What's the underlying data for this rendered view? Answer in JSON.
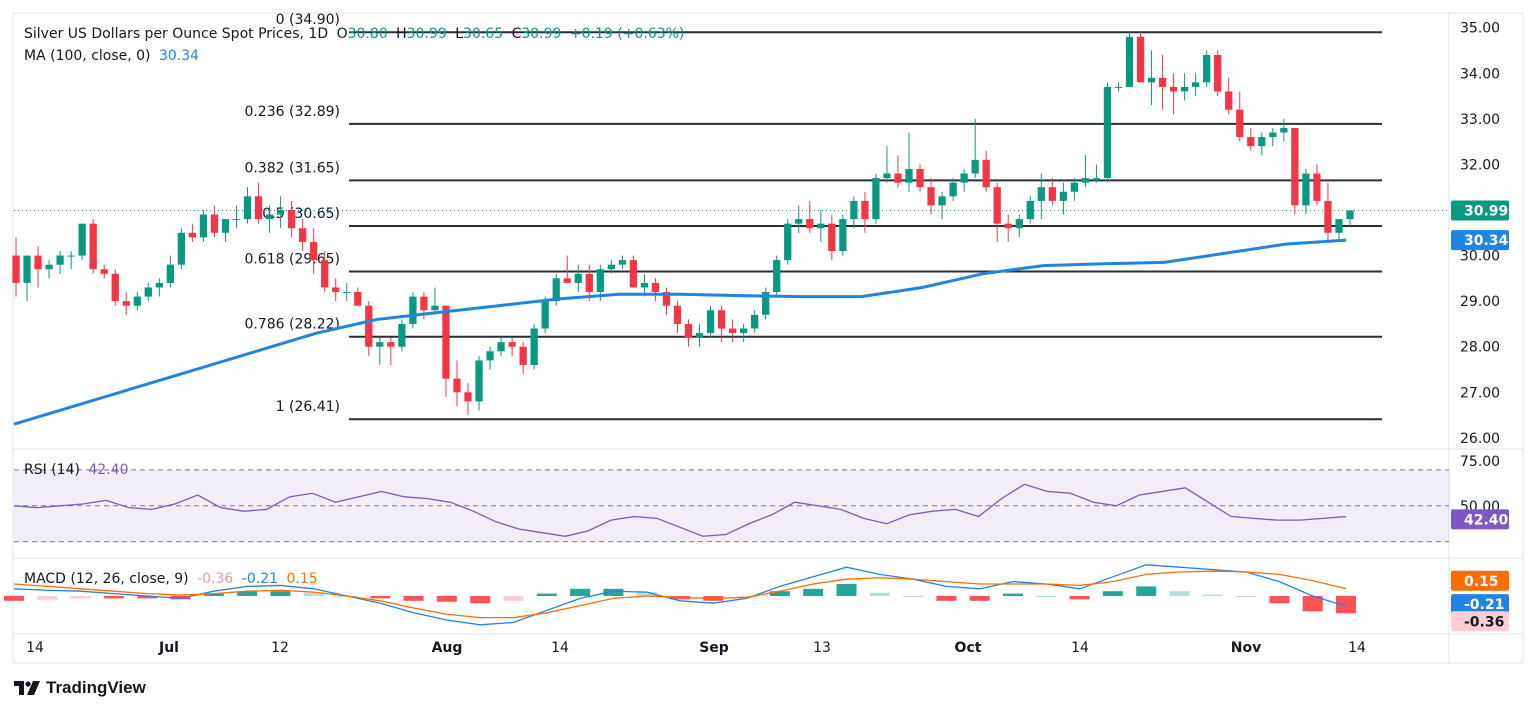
{
  "header": {
    "title": "Silver US Dollars per Ounce Spot Prices, 1D",
    "o_label": "O",
    "o": "30.80",
    "h_label": "H",
    "h": "30.99",
    "l_label": "L",
    "l": "30.65",
    "c_label": "C",
    "c": "30.99",
    "change": "+0.19 (+0.63%)",
    "ma_label": "MA (100, close, 0)",
    "ma_value": "30.34",
    "rsi_label": "RSI (14)",
    "rsi_value": "42.40",
    "macd_label": "MACD (12, 26, close, 9)",
    "macd_hist": "-0.36",
    "macd_line": "-0.21",
    "macd_signal": "0.15"
  },
  "brand": "TradingView",
  "colors": {
    "up": "#089981",
    "down": "#f23645",
    "ma": "#2962ff",
    "ma_line": "#2185e0",
    "rsi": "#7e57c2",
    "signal": "#ff6d00",
    "axis": "#131722"
  },
  "chart_data": [
    {
      "type": "candlestick",
      "title": "Silver US Dollars per Ounce Spot Prices, 1D",
      "ylim": [
        25.8,
        35.3
      ],
      "y_ticks": [
        "35.00",
        "34.00",
        "33.00",
        "32.00",
        "31.00",
        "30.00",
        "29.00",
        "28.00",
        "27.00",
        "26.00"
      ],
      "x_ticks": [
        "14",
        "Jul",
        "12",
        "Aug",
        "14",
        "Sep",
        "13",
        "Oct",
        "14",
        "Nov",
        "14"
      ],
      "last_price": "30.99",
      "ma_last": "30.34",
      "fibonacci": [
        {
          "label": "0 (34.90)",
          "value": 34.9
        },
        {
          "label": "0.236 (32.89)",
          "value": 32.89
        },
        {
          "label": "0.382 (31.65)",
          "value": 31.65
        },
        {
          "label": "0.5 (30.65)",
          "value": 30.65
        },
        {
          "label": "0.618 (29.65)",
          "value": 29.65
        },
        {
          "label": "0.786 (28.22)",
          "value": 28.22
        },
        {
          "label": "1 (26.41)",
          "value": 26.41
        }
      ],
      "candles": [
        [
          30.0,
          30.4,
          29.1,
          29.4
        ],
        [
          29.4,
          30.0,
          29.0,
          30.0
        ],
        [
          30.0,
          30.2,
          29.3,
          29.7
        ],
        [
          29.7,
          29.9,
          29.5,
          29.8
        ],
        [
          29.8,
          30.1,
          29.6,
          30.0
        ],
        [
          30.0,
          30.1,
          29.7,
          30.0
        ],
        [
          30.0,
          30.7,
          29.9,
          30.7
        ],
        [
          30.7,
          30.8,
          29.6,
          29.7
        ],
        [
          29.7,
          29.8,
          29.5,
          29.6
        ],
        [
          29.6,
          29.7,
          28.9,
          29.0
        ],
        [
          29.0,
          29.2,
          28.7,
          28.9
        ],
        [
          28.9,
          29.2,
          28.8,
          29.1
        ],
        [
          29.1,
          29.4,
          29.0,
          29.3
        ],
        [
          29.3,
          29.5,
          29.1,
          29.4
        ],
        [
          29.4,
          30.0,
          29.3,
          29.8
        ],
        [
          29.8,
          30.6,
          29.7,
          30.5
        ],
        [
          30.5,
          30.7,
          30.3,
          30.4
        ],
        [
          30.4,
          31.0,
          30.3,
          30.9
        ],
        [
          30.9,
          31.1,
          30.4,
          30.5
        ],
        [
          30.5,
          30.8,
          30.3,
          30.8
        ],
        [
          30.8,
          31.1,
          30.6,
          30.8
        ],
        [
          30.8,
          31.5,
          30.7,
          31.3
        ],
        [
          31.3,
          31.6,
          30.7,
          30.8
        ],
        [
          30.8,
          31.1,
          30.5,
          30.9
        ],
        [
          30.9,
          31.3,
          30.6,
          31.0
        ],
        [
          31.0,
          31.2,
          30.4,
          30.6
        ],
        [
          30.6,
          30.8,
          30.1,
          30.3
        ],
        [
          30.3,
          30.6,
          29.6,
          29.9
        ],
        [
          29.9,
          30.1,
          29.2,
          29.3
        ],
        [
          29.3,
          29.5,
          29.0,
          29.2
        ],
        [
          29.2,
          29.4,
          29.0,
          29.2
        ],
        [
          29.2,
          29.3,
          28.9,
          28.9
        ],
        [
          28.9,
          29.0,
          27.8,
          28.0
        ],
        [
          28.0,
          28.2,
          27.6,
          28.1
        ],
        [
          28.1,
          28.2,
          27.6,
          28.0
        ],
        [
          28.0,
          28.6,
          27.9,
          28.5
        ],
        [
          28.5,
          29.2,
          28.4,
          29.1
        ],
        [
          29.1,
          29.2,
          28.6,
          28.8
        ],
        [
          28.8,
          29.3,
          28.7,
          28.9
        ],
        [
          28.9,
          28.9,
          26.9,
          27.3
        ],
        [
          27.3,
          27.7,
          26.7,
          27.0
        ],
        [
          27.0,
          27.2,
          26.5,
          26.8
        ],
        [
          26.8,
          27.8,
          26.6,
          27.7
        ],
        [
          27.7,
          28.0,
          27.5,
          27.9
        ],
        [
          27.9,
          28.2,
          27.8,
          28.1
        ],
        [
          28.1,
          28.2,
          27.8,
          28.0
        ],
        [
          28.0,
          28.1,
          27.4,
          27.6
        ],
        [
          27.6,
          28.5,
          27.5,
          28.4
        ],
        [
          28.4,
          29.1,
          28.3,
          29.0
        ],
        [
          29.0,
          29.6,
          28.9,
          29.5
        ],
        [
          29.5,
          30.0,
          29.4,
          29.4
        ],
        [
          29.4,
          29.8,
          29.2,
          29.6
        ],
        [
          29.6,
          29.8,
          29.0,
          29.2
        ],
        [
          29.2,
          29.8,
          29.0,
          29.7
        ],
        [
          29.7,
          29.9,
          29.6,
          29.8
        ],
        [
          29.8,
          30.0,
          29.7,
          29.9
        ],
        [
          29.9,
          30.0,
          29.3,
          29.3
        ],
        [
          29.3,
          29.6,
          29.1,
          29.4
        ],
        [
          29.4,
          29.5,
          29.0,
          29.2
        ],
        [
          29.2,
          29.3,
          28.7,
          28.9
        ],
        [
          28.9,
          29.0,
          28.3,
          28.5
        ],
        [
          28.5,
          28.6,
          28.0,
          28.2
        ],
        [
          28.2,
          28.5,
          28.0,
          28.3
        ],
        [
          28.3,
          28.9,
          28.2,
          28.8
        ],
        [
          28.8,
          28.9,
          28.1,
          28.4
        ],
        [
          28.4,
          28.6,
          28.1,
          28.3
        ],
        [
          28.3,
          28.5,
          28.1,
          28.4
        ],
        [
          28.4,
          28.8,
          28.3,
          28.7
        ],
        [
          28.7,
          29.3,
          28.6,
          29.2
        ],
        [
          29.2,
          30.0,
          29.1,
          29.9
        ],
        [
          29.9,
          30.8,
          29.8,
          30.7
        ],
        [
          30.7,
          31.1,
          30.5,
          30.8
        ],
        [
          30.8,
          31.2,
          30.5,
          30.6
        ],
        [
          30.6,
          31.0,
          30.3,
          30.7
        ],
        [
          30.7,
          30.9,
          29.9,
          30.1
        ],
        [
          30.1,
          30.9,
          30.0,
          30.8
        ],
        [
          30.8,
          31.3,
          30.6,
          31.2
        ],
        [
          31.2,
          31.4,
          30.5,
          30.8
        ],
        [
          30.8,
          31.8,
          30.7,
          31.7
        ],
        [
          31.7,
          32.4,
          31.6,
          31.8
        ],
        [
          31.8,
          32.2,
          31.5,
          31.6
        ],
        [
          31.6,
          32.7,
          31.4,
          31.9
        ],
        [
          31.9,
          32.0,
          31.4,
          31.5
        ],
        [
          31.5,
          31.7,
          30.9,
          31.1
        ],
        [
          31.1,
          31.4,
          30.8,
          31.3
        ],
        [
          31.3,
          31.7,
          31.2,
          31.6
        ],
        [
          31.6,
          31.9,
          31.4,
          31.8
        ],
        [
          31.8,
          33.0,
          31.7,
          32.1
        ],
        [
          32.1,
          32.3,
          31.4,
          31.5
        ],
        [
          31.5,
          31.6,
          30.3,
          30.7
        ],
        [
          30.7,
          30.9,
          30.3,
          30.6
        ],
        [
          30.6,
          30.9,
          30.4,
          30.8
        ],
        [
          30.8,
          31.3,
          30.7,
          31.2
        ],
        [
          31.2,
          31.8,
          30.8,
          31.5
        ],
        [
          31.5,
          31.7,
          31.1,
          31.2
        ],
        [
          31.2,
          31.6,
          30.9,
          31.4
        ],
        [
          31.4,
          31.7,
          31.2,
          31.6
        ],
        [
          31.6,
          32.2,
          31.5,
          31.7
        ],
        [
          31.7,
          32.0,
          31.6,
          31.7
        ],
        [
          31.7,
          33.8,
          31.6,
          33.7
        ],
        [
          33.7,
          33.8,
          33.6,
          33.7
        ],
        [
          33.7,
          34.9,
          33.7,
          34.8
        ],
        [
          34.8,
          34.9,
          33.8,
          33.8
        ],
        [
          33.8,
          34.5,
          33.3,
          33.9
        ],
        [
          33.9,
          34.4,
          33.2,
          33.7
        ],
        [
          33.7,
          34.0,
          33.1,
          33.6
        ],
        [
          33.6,
          34.0,
          33.4,
          33.7
        ],
        [
          33.7,
          34.0,
          33.5,
          33.8
        ],
        [
          33.8,
          34.5,
          33.7,
          34.4
        ],
        [
          34.4,
          34.5,
          33.5,
          33.6
        ],
        [
          33.6,
          33.9,
          33.1,
          33.2
        ],
        [
          33.2,
          33.6,
          32.5,
          32.6
        ],
        [
          32.6,
          32.8,
          32.3,
          32.4
        ],
        [
          32.4,
          32.7,
          32.2,
          32.6
        ],
        [
          32.6,
          32.8,
          32.4,
          32.7
        ],
        [
          32.7,
          33.0,
          32.5,
          32.8
        ],
        [
          32.8,
          32.8,
          30.9,
          31.1
        ],
        [
          31.1,
          31.9,
          30.9,
          31.8
        ],
        [
          31.8,
          32.0,
          31.1,
          31.2
        ],
        [
          31.2,
          31.6,
          30.3,
          30.5
        ],
        [
          30.5,
          30.8,
          30.3,
          30.8
        ],
        [
          30.8,
          30.99,
          30.65,
          30.99
        ]
      ],
      "ma": [
        26.3,
        26.7,
        27.1,
        27.5,
        27.9,
        28.3,
        28.6,
        28.75,
        28.9,
        29.05,
        29.15,
        29.15,
        29.12,
        29.1,
        29.1,
        29.3,
        29.6,
        29.78,
        29.82,
        29.85,
        30.05,
        30.25,
        30.34
      ]
    },
    {
      "type": "line",
      "title": "RSI (14)",
      "ylim": [
        22,
        80
      ],
      "y_ticks": [
        "75.00",
        "50.00"
      ],
      "levels": [
        70,
        50,
        30
      ],
      "last": "42.40",
      "values": [
        50,
        49,
        50,
        51,
        53,
        49,
        48,
        51,
        56,
        49,
        47,
        48,
        55,
        57,
        52,
        55,
        58,
        55,
        54,
        52,
        47,
        41,
        37,
        35,
        33,
        36,
        42,
        44,
        43,
        38,
        33,
        34,
        40,
        45,
        52,
        50,
        48,
        43,
        40,
        45,
        47,
        48,
        44,
        54,
        62,
        58,
        57,
        52,
        50,
        56,
        58,
        60,
        52,
        44,
        43,
        42,
        42,
        43,
        44
      ]
    },
    {
      "type": "macd",
      "title": "MACD (12, 26, close, 9)",
      "ylim": [
        -0.75,
        0.75
      ],
      "last_hist": "-0.36",
      "last_macd": "-0.21",
      "last_signal": "0.15",
      "macd": [
        0.15,
        0.12,
        0.1,
        0.05,
        0.0,
        -0.05,
        0.1,
        0.2,
        0.22,
        0.15,
        0.0,
        -0.15,
        -0.35,
        -0.5,
        -0.6,
        -0.55,
        -0.3,
        -0.05,
        0.1,
        0.08,
        -0.1,
        -0.15,
        -0.05,
        0.2,
        0.4,
        0.6,
        0.45,
        0.35,
        0.2,
        0.15,
        0.3,
        0.25,
        0.15,
        0.4,
        0.65,
        0.6,
        0.55,
        0.5,
        0.3,
        0.0,
        -0.21
      ],
      "signal": [
        0.25,
        0.2,
        0.15,
        0.1,
        0.05,
        0.02,
        0.05,
        0.1,
        0.12,
        0.08,
        0.0,
        -0.1,
        -0.25,
        -0.38,
        -0.45,
        -0.45,
        -0.35,
        -0.2,
        -0.05,
        0.0,
        -0.03,
        -0.05,
        -0.03,
        0.1,
        0.25,
        0.35,
        0.38,
        0.35,
        0.3,
        0.25,
        0.25,
        0.25,
        0.22,
        0.3,
        0.45,
        0.5,
        0.52,
        0.5,
        0.45,
        0.32,
        0.15
      ]
    }
  ]
}
